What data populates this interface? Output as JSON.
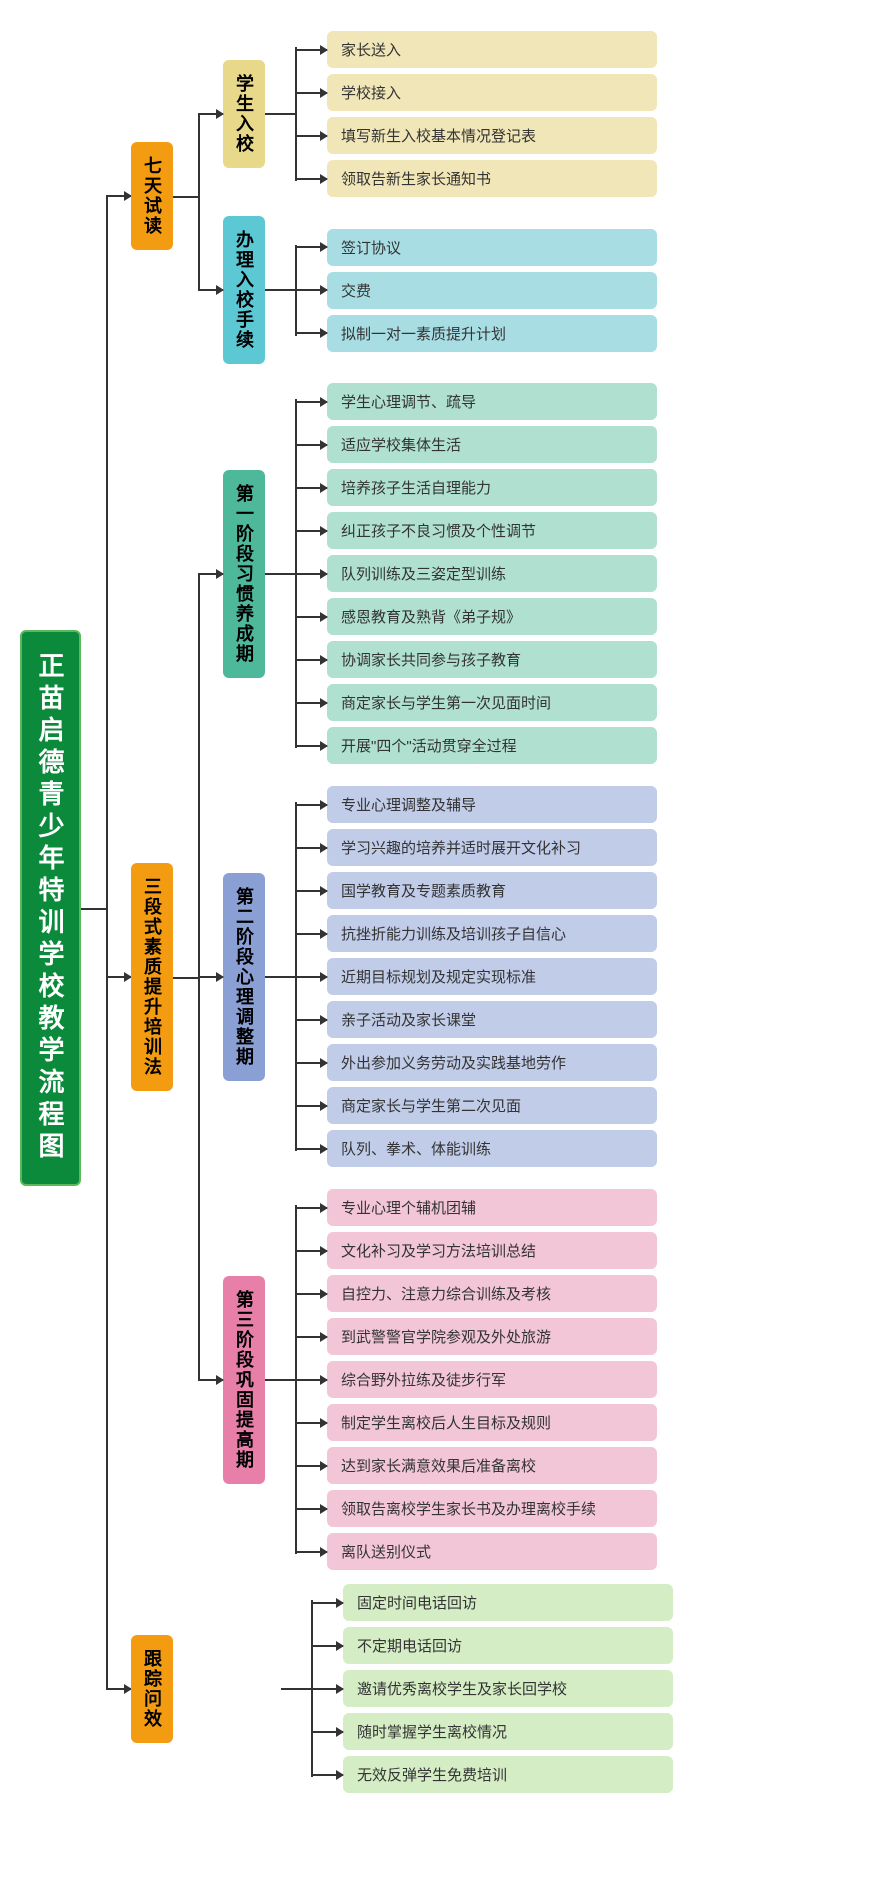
{
  "root": {
    "label": "正苗启德青少年特训学校教学流程图",
    "bg": "#0a8a3a",
    "border": "#5cb85c",
    "text": "#ffffff"
  },
  "level1": [
    {
      "label": "七天试读",
      "bg": "#f39c12",
      "children": [
        {
          "label": "学生入校",
          "bg": "#e8d98a",
          "leaf_bg": "#f0e6b8",
          "leaves": [
            "家长送入",
            "学校接入",
            "填写新生入校基本情况登记表",
            "领取告新生家长通知书"
          ]
        },
        {
          "label": "办理入校手续",
          "bg": "#5bc8d4",
          "leaf_bg": "#a8dde4",
          "leaves": [
            "签订协议",
            "交费",
            "拟制一对一素质提升计划"
          ]
        }
      ]
    },
    {
      "label": "三段式素质提升培训法",
      "bg": "#f39c12",
      "children": [
        {
          "label_top": "习惯养成期",
          "label_bottom": "第一阶段",
          "bg": "#4db89a",
          "leaf_bg": "#b0e0d0",
          "leaves": [
            "学生心理调节、疏导",
            "适应学校集体生活",
            "培养孩子生活自理能力",
            "纠正孩子不良习惯及个性调节",
            "队列训练及三姿定型训练",
            "感恩教育及熟背《弟子规》",
            "协调家长共同参与孩子教育",
            "商定家长与学生第一次见面时间",
            "开展\"四个\"活动贯穿全过程"
          ]
        },
        {
          "label_top": "心理调整期",
          "label_bottom": "第二阶段",
          "bg": "#8a9fd4",
          "leaf_bg": "#c0cce8",
          "leaves": [
            "专业心理调整及辅导",
            "学习兴趣的培养并适时展开文化补习",
            "国学教育及专题素质教育",
            "抗挫折能力训练及培训孩子自信心",
            "近期目标规划及规定实现标准",
            "亲子活动及家长课堂",
            "外出参加义务劳动及实践基地劳作",
            "商定家长与学生第二次见面",
            "队列、拳术、体能训练"
          ]
        },
        {
          "label_top": "巩固提高期",
          "label_bottom": "第三阶段",
          "bg": "#e77fa8",
          "leaf_bg": "#f2c6d7",
          "leaves": [
            "专业心理个辅机团辅",
            "文化补习及学习方法培训总结",
            "自控力、注意力综合训练及考核",
            "到武警警官学院参观及外处旅游",
            "综合野外拉练及徒步行军",
            "制定学生离校后人生目标及规则",
            "达到家长满意效果后准备离校",
            "领取告离校学生家长书及办理离校手续",
            "离队送别仪式"
          ]
        }
      ]
    },
    {
      "label": "跟踪问效",
      "bg": "#f39c12",
      "leaf_bg": "#d4edc4",
      "leaves": [
        "固定时间电话回访",
        "不定期电话回访",
        "邀请优秀离校学生及家长回学校",
        "随时掌握学生离校情况",
        "无效反弹学生免费培训"
      ]
    }
  ]
}
